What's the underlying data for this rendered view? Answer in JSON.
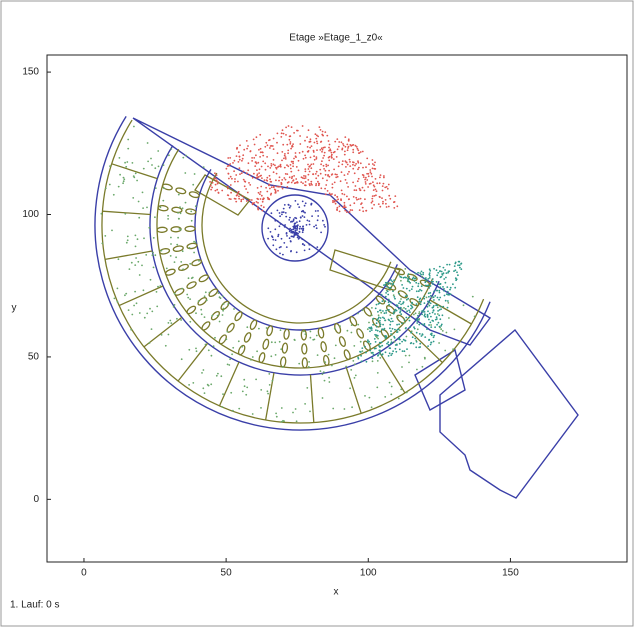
{
  "chart_data": {
    "type": "plan",
    "title": "Etage »Etage_1_z0«",
    "x_label": "x",
    "y_label": "y",
    "xlim": [
      -13,
      191
    ],
    "ylim": [
      -22,
      156
    ],
    "xticks": [
      0,
      50,
      100,
      150
    ],
    "yticks": [
      0,
      50,
      100,
      150
    ],
    "footer": "1. Lauf: 0 s"
  }
}
